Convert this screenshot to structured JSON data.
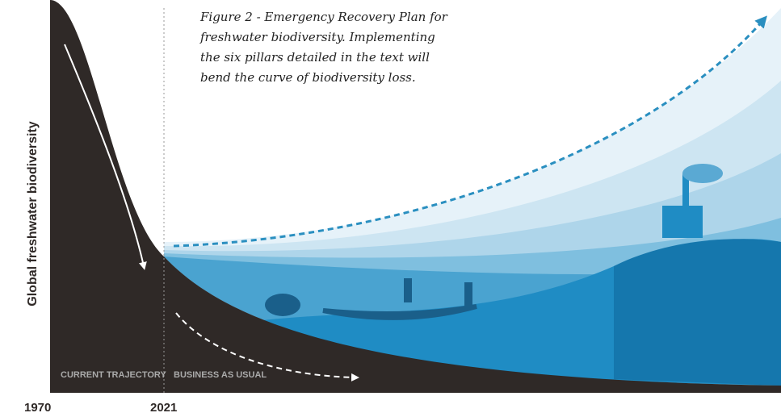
{
  "caption_lines": [
    "Figure 2 - Emergency Recovery Plan for",
    "freshwater biodiversity. Implementing",
    "the six pillars detailed in the text will",
    "bend the curve of biodiversity loss."
  ],
  "y_axis_label": "Global freshwater biodiversity",
  "regions": [
    "CURRENT TRAJECTORY",
    "BUSINESS AS USUAL"
  ],
  "x_labels": [
    "1970",
    "2021"
  ]
}
